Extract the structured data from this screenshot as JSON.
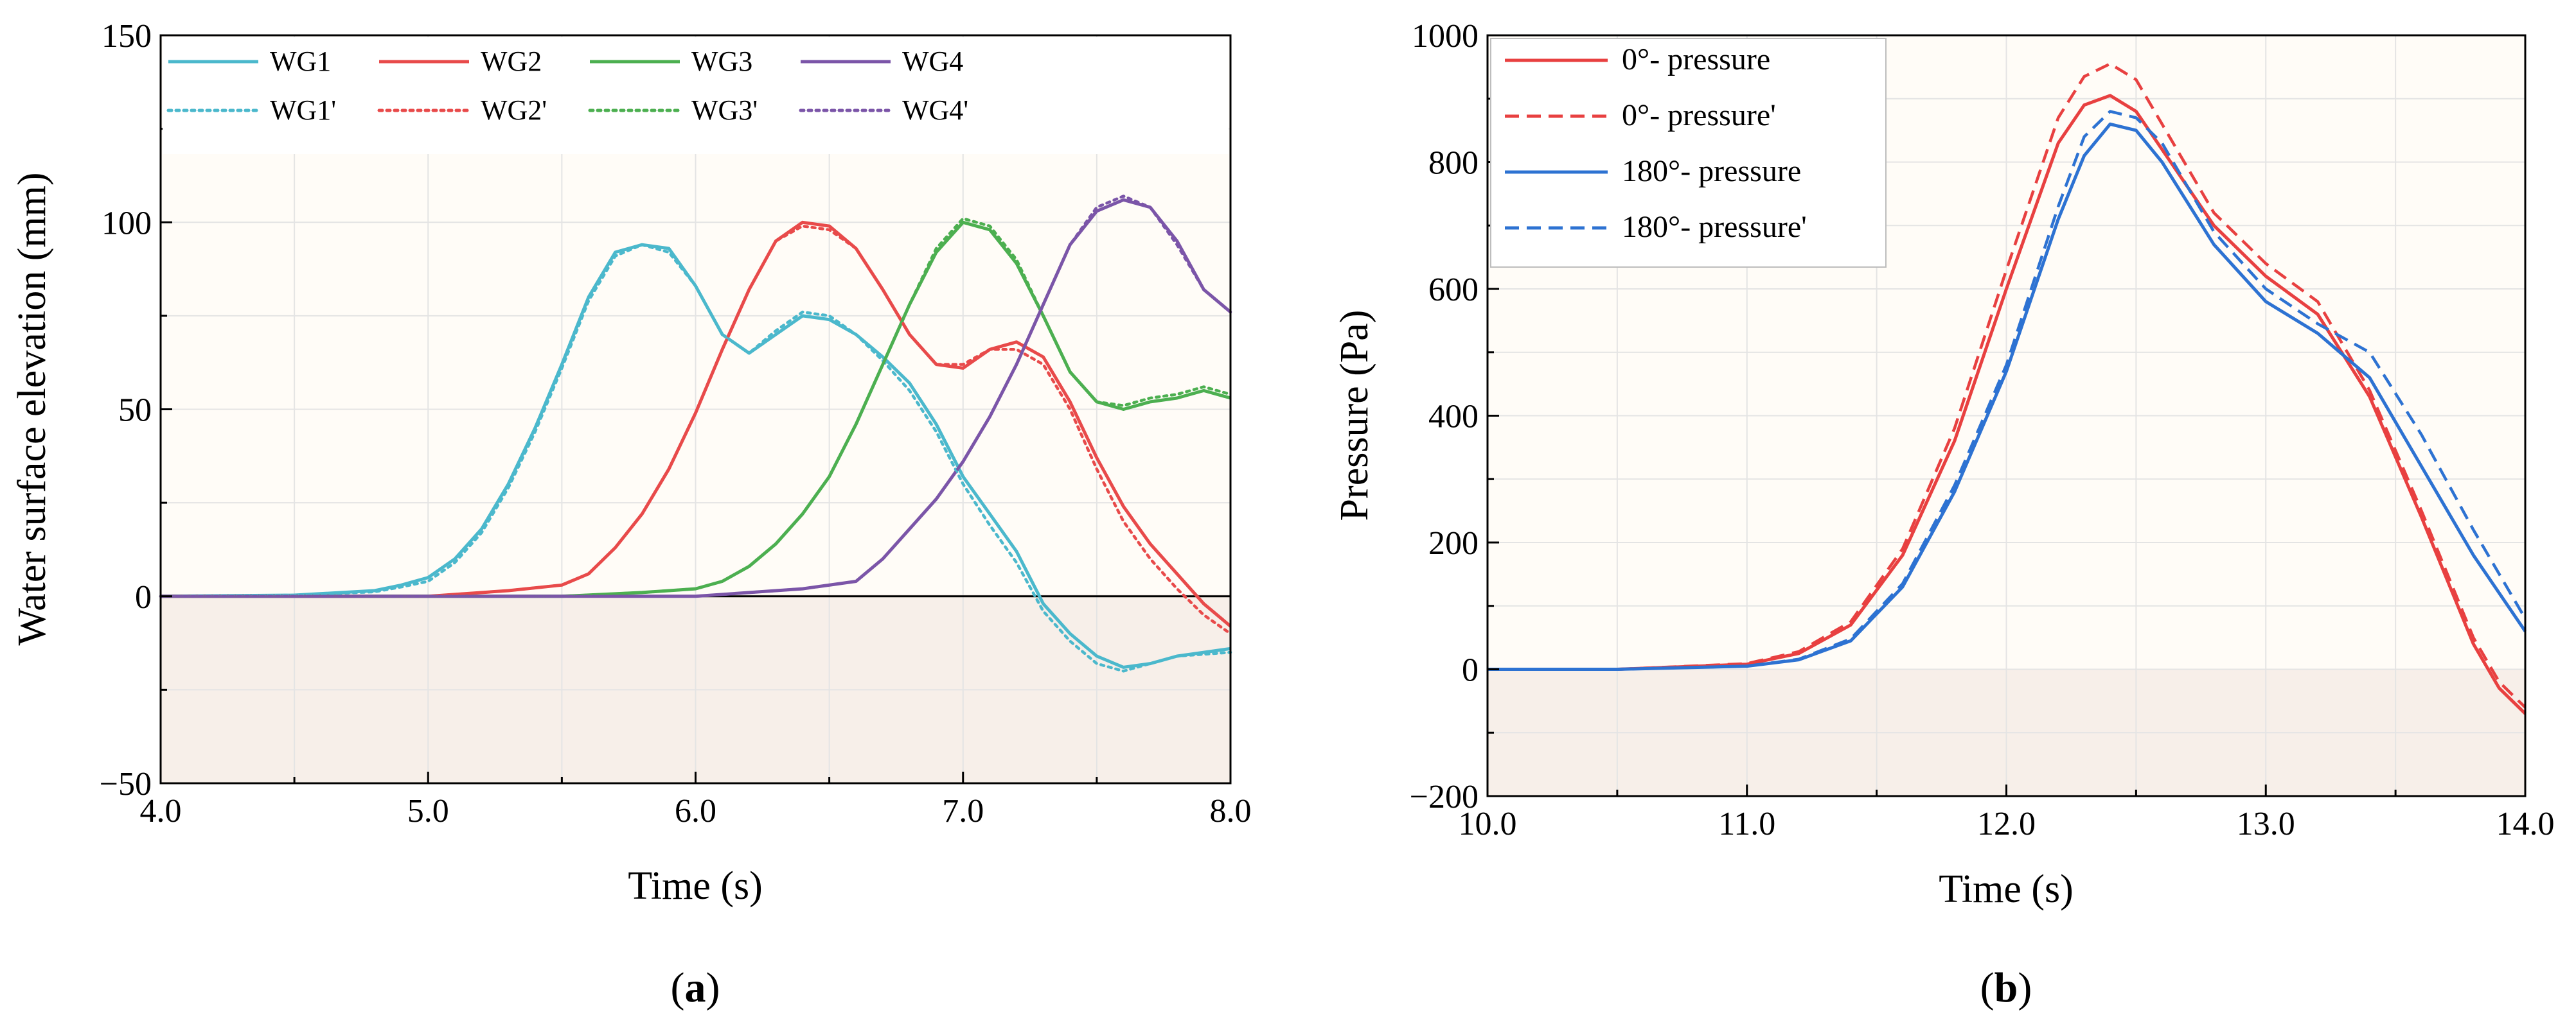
{
  "chart_data": [
    {
      "type": "line",
      "panel_label": "a",
      "title": "",
      "xlabel": "Time (s)",
      "ylabel": "Water surface elevation (mm)",
      "xlim": [
        4.0,
        8.0
      ],
      "ylim": [
        -50,
        150
      ],
      "xticks": [
        4.0,
        5.0,
        6.0,
        7.0,
        8.0
      ],
      "xtick_labels": [
        "4.0",
        "5.0",
        "6.0",
        "7.0",
        "8.0"
      ],
      "yticks": [
        -50,
        0,
        50,
        100,
        150
      ],
      "ytick_labels": [
        "−50",
        "0",
        "50",
        "100",
        "150"
      ],
      "zero_line": true,
      "grid": true,
      "legend_position": "top",
      "series": [
        {
          "name": "WG1",
          "color": "#4bb8cc",
          "dash": "solid",
          "x": [
            4.0,
            4.5,
            4.8,
            4.9,
            5.0,
            5.1,
            5.2,
            5.3,
            5.4,
            5.5,
            5.6,
            5.7,
            5.8,
            5.9,
            6.0,
            6.1,
            6.2,
            6.3,
            6.4,
            6.5,
            6.6,
            6.7,
            6.8,
            6.9,
            7.0,
            7.1,
            7.2,
            7.3,
            7.4,
            7.5,
            7.6,
            7.7,
            7.8,
            8.0
          ],
          "y": [
            0,
            0.3,
            1.5,
            3,
            5,
            10,
            18,
            30,
            45,
            62,
            80,
            92,
            94,
            93,
            83,
            70,
            65,
            70,
            75,
            74,
            70,
            64,
            57,
            46,
            32,
            22,
            12,
            -2,
            -10,
            -16,
            -19,
            -18,
            -16,
            -14
          ]
        },
        {
          "name": "WG2",
          "color": "#e84a4a",
          "dash": "solid",
          "x": [
            4.0,
            5.0,
            5.3,
            5.5,
            5.6,
            5.7,
            5.8,
            5.9,
            6.0,
            6.1,
            6.2,
            6.3,
            6.4,
            6.5,
            6.6,
            6.7,
            6.8,
            6.9,
            7.0,
            7.1,
            7.2,
            7.3,
            7.4,
            7.5,
            7.6,
            7.7,
            7.8,
            7.9,
            8.0
          ],
          "y": [
            0,
            0,
            1.5,
            3,
            6,
            13,
            22,
            34,
            49,
            66,
            82,
            95,
            100,
            99,
            93,
            82,
            70,
            62,
            61,
            66,
            68,
            64,
            52,
            37,
            24,
            14,
            6,
            -2,
            -8
          ]
        },
        {
          "name": "WG3",
          "color": "#4caf50",
          "dash": "solid",
          "x": [
            4.0,
            5.5,
            5.8,
            6.0,
            6.1,
            6.2,
            6.3,
            6.4,
            6.5,
            6.6,
            6.7,
            6.8,
            6.9,
            7.0,
            7.1,
            7.2,
            7.3,
            7.4,
            7.5,
            7.6,
            7.7,
            7.8,
            7.9,
            8.0
          ],
          "y": [
            0,
            0,
            1,
            2,
            4,
            8,
            14,
            22,
            32,
            46,
            62,
            78,
            92,
            100,
            98,
            89,
            75,
            60,
            52,
            50,
            52,
            53,
            55,
            53
          ]
        },
        {
          "name": "WG4",
          "color": "#7b55a8",
          "dash": "solid",
          "x": [
            4.0,
            6.0,
            6.4,
            6.6,
            6.7,
            6.8,
            6.9,
            7.0,
            7.1,
            7.2,
            7.3,
            7.4,
            7.5,
            7.6,
            7.7,
            7.8,
            7.9,
            8.0
          ],
          "y": [
            0,
            0,
            2,
            4,
            10,
            18,
            26,
            36,
            48,
            62,
            78,
            94,
            103,
            106,
            104,
            95,
            82,
            76
          ]
        },
        {
          "name": "WG1'",
          "color": "#4bb8cc",
          "dash": "dotted",
          "x": [
            4.0,
            4.5,
            4.8,
            4.9,
            5.0,
            5.1,
            5.2,
            5.3,
            5.4,
            5.5,
            5.6,
            5.7,
            5.8,
            5.9,
            6.0,
            6.1,
            6.2,
            6.3,
            6.4,
            6.5,
            6.6,
            6.7,
            6.8,
            6.9,
            7.0,
            7.1,
            7.2,
            7.3,
            7.4,
            7.5,
            7.6,
            7.7,
            7.8,
            8.0
          ],
          "y": [
            0,
            0.3,
            1.2,
            2.5,
            4,
            9,
            17,
            29,
            44,
            61,
            79,
            91,
            94,
            92,
            83,
            70,
            65,
            71,
            76,
            75,
            70,
            63,
            55,
            44,
            30,
            19,
            9,
            -4,
            -12,
            -18,
            -20,
            -18,
            -16,
            -15
          ]
        },
        {
          "name": "WG2'",
          "color": "#e84a4a",
          "dash": "dotted",
          "x": [
            4.0,
            5.0,
            5.3,
            5.5,
            5.6,
            5.7,
            5.8,
            5.9,
            6.0,
            6.1,
            6.2,
            6.3,
            6.4,
            6.5,
            6.6,
            6.7,
            6.8,
            6.9,
            7.0,
            7.1,
            7.2,
            7.3,
            7.4,
            7.5,
            7.6,
            7.7,
            7.8,
            7.9,
            8.0
          ],
          "y": [
            0,
            0,
            1.5,
            3,
            6,
            13,
            22,
            34,
            49,
            66,
            82,
            95,
            99,
            98,
            93,
            82,
            70,
            62,
            62,
            66,
            66,
            62,
            50,
            34,
            20,
            10,
            2,
            -5,
            -10
          ]
        },
        {
          "name": "WG3'",
          "color": "#4caf50",
          "dash": "dotted",
          "x": [
            4.0,
            5.5,
            5.8,
            6.0,
            6.1,
            6.2,
            6.3,
            6.4,
            6.5,
            6.6,
            6.7,
            6.8,
            6.9,
            7.0,
            7.1,
            7.2,
            7.3,
            7.4,
            7.5,
            7.6,
            7.7,
            7.8,
            7.9,
            8.0
          ],
          "y": [
            0,
            0,
            1,
            2,
            4,
            8,
            14,
            22,
            32,
            46,
            62,
            78,
            93,
            101,
            99,
            90,
            75,
            60,
            52,
            51,
            53,
            54,
            56,
            54
          ]
        },
        {
          "name": "WG4'",
          "color": "#7b55a8",
          "dash": "dotted",
          "x": [
            4.0,
            6.0,
            6.4,
            6.6,
            6.7,
            6.8,
            6.9,
            7.0,
            7.1,
            7.2,
            7.3,
            7.4,
            7.5,
            7.6,
            7.7,
            7.8,
            7.9,
            8.0
          ],
          "y": [
            0,
            0,
            2,
            4,
            10,
            18,
            26,
            36,
            48,
            62,
            78,
            94,
            104,
            107,
            104,
            94,
            82,
            76
          ]
        }
      ]
    },
    {
      "type": "line",
      "panel_label": "b",
      "title": "",
      "xlabel": "Time (s)",
      "ylabel": "Pressure (Pa)",
      "xlim": [
        10.0,
        14.0
      ],
      "ylim": [
        -200,
        1000
      ],
      "xticks": [
        10.0,
        11.0,
        12.0,
        13.0,
        14.0
      ],
      "xtick_labels": [
        "10.0",
        "11.0",
        "12.0",
        "13.0",
        "14.0"
      ],
      "yticks": [
        -200,
        0,
        200,
        400,
        600,
        800,
        1000
      ],
      "ytick_labels": [
        "−200",
        "0",
        "200",
        "400",
        "600",
        "800",
        "1000"
      ],
      "zero_line": false,
      "grid": true,
      "legend_position": "top-left",
      "series": [
        {
          "name": "0°- pressure",
          "color": "#e84040",
          "dash": "solid",
          "x": [
            10.0,
            10.5,
            11.0,
            11.2,
            11.4,
            11.6,
            11.8,
            12.0,
            12.2,
            12.3,
            12.4,
            12.5,
            12.6,
            12.8,
            13.0,
            13.2,
            13.4,
            13.6,
            13.8,
            13.9,
            14.0
          ],
          "y": [
            0,
            0,
            8,
            25,
            70,
            180,
            360,
            600,
            830,
            890,
            905,
            880,
            820,
            700,
            620,
            560,
            430,
            240,
            40,
            -30,
            -70
          ]
        },
        {
          "name": "0°- pressure'",
          "color": "#e84040",
          "dash": "dashed",
          "x": [
            10.0,
            10.5,
            11.0,
            11.2,
            11.4,
            11.6,
            11.8,
            12.0,
            12.2,
            12.3,
            12.4,
            12.5,
            12.6,
            12.8,
            13.0,
            13.2,
            13.4,
            13.6,
            13.8,
            13.9,
            14.0
          ],
          "y": [
            0,
            0,
            9,
            28,
            75,
            190,
            380,
            630,
            870,
            935,
            955,
            930,
            860,
            720,
            640,
            580,
            440,
            250,
            50,
            -20,
            -60
          ]
        },
        {
          "name": "180°- pressure",
          "color": "#2d72d2",
          "dash": "solid",
          "x": [
            10.0,
            10.5,
            11.0,
            11.2,
            11.4,
            11.6,
            11.8,
            12.0,
            12.2,
            12.3,
            12.4,
            12.5,
            12.6,
            12.8,
            13.0,
            13.2,
            13.4,
            13.6,
            13.8,
            14.0
          ],
          "y": [
            0,
            0,
            5,
            15,
            45,
            130,
            280,
            470,
            710,
            810,
            860,
            850,
            800,
            670,
            580,
            530,
            460,
            320,
            180,
            60
          ]
        },
        {
          "name": "180°- pressure'",
          "color": "#2d72d2",
          "dash": "dashed",
          "x": [
            10.0,
            10.5,
            11.0,
            11.2,
            11.4,
            11.6,
            11.8,
            12.0,
            12.2,
            12.3,
            12.4,
            12.5,
            12.6,
            12.8,
            13.0,
            13.2,
            13.4,
            13.6,
            13.8,
            14.0
          ],
          "y": [
            0,
            0,
            5,
            16,
            48,
            135,
            290,
            480,
            730,
            840,
            880,
            870,
            830,
            690,
            600,
            545,
            500,
            370,
            220,
            80
          ]
        }
      ]
    }
  ]
}
